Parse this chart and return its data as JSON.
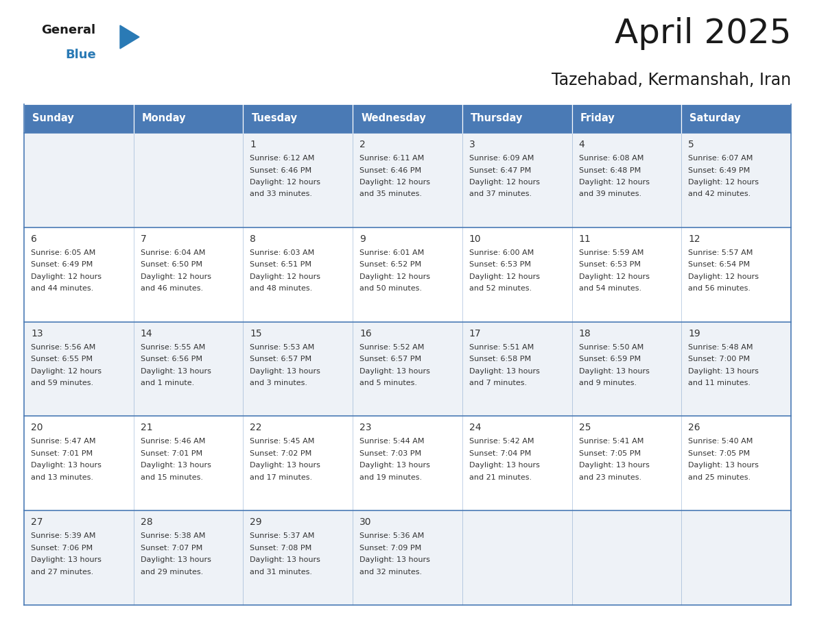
{
  "title": "April 2025",
  "subtitle": "Tazehabad, Kermanshah, Iran",
  "days_of_week": [
    "Sunday",
    "Monday",
    "Tuesday",
    "Wednesday",
    "Thursday",
    "Friday",
    "Saturday"
  ],
  "header_bg": "#4a7ab5",
  "header_text": "#ffffff",
  "row_bg_odd": "#eef2f7",
  "row_bg_even": "#ffffff",
  "border_color": "#4a7ab5",
  "text_color": "#333333",
  "logo_general_color": "#1a1a1a",
  "logo_blue_color": "#2a7ab5",
  "logo_triangle_color": "#2a7ab5",
  "title_color": "#1a1a1a",
  "subtitle_color": "#1a1a1a",
  "calendar_data": [
    [
      {
        "day": "",
        "sunrise": "",
        "sunset": "",
        "daylight": ""
      },
      {
        "day": "",
        "sunrise": "",
        "sunset": "",
        "daylight": ""
      },
      {
        "day": "1",
        "sunrise": "Sunrise: 6:12 AM",
        "sunset": "Sunset: 6:46 PM",
        "daylight": "Daylight: 12 hours\nand 33 minutes."
      },
      {
        "day": "2",
        "sunrise": "Sunrise: 6:11 AM",
        "sunset": "Sunset: 6:46 PM",
        "daylight": "Daylight: 12 hours\nand 35 minutes."
      },
      {
        "day": "3",
        "sunrise": "Sunrise: 6:09 AM",
        "sunset": "Sunset: 6:47 PM",
        "daylight": "Daylight: 12 hours\nand 37 minutes."
      },
      {
        "day": "4",
        "sunrise": "Sunrise: 6:08 AM",
        "sunset": "Sunset: 6:48 PM",
        "daylight": "Daylight: 12 hours\nand 39 minutes."
      },
      {
        "day": "5",
        "sunrise": "Sunrise: 6:07 AM",
        "sunset": "Sunset: 6:49 PM",
        "daylight": "Daylight: 12 hours\nand 42 minutes."
      }
    ],
    [
      {
        "day": "6",
        "sunrise": "Sunrise: 6:05 AM",
        "sunset": "Sunset: 6:49 PM",
        "daylight": "Daylight: 12 hours\nand 44 minutes."
      },
      {
        "day": "7",
        "sunrise": "Sunrise: 6:04 AM",
        "sunset": "Sunset: 6:50 PM",
        "daylight": "Daylight: 12 hours\nand 46 minutes."
      },
      {
        "day": "8",
        "sunrise": "Sunrise: 6:03 AM",
        "sunset": "Sunset: 6:51 PM",
        "daylight": "Daylight: 12 hours\nand 48 minutes."
      },
      {
        "day": "9",
        "sunrise": "Sunrise: 6:01 AM",
        "sunset": "Sunset: 6:52 PM",
        "daylight": "Daylight: 12 hours\nand 50 minutes."
      },
      {
        "day": "10",
        "sunrise": "Sunrise: 6:00 AM",
        "sunset": "Sunset: 6:53 PM",
        "daylight": "Daylight: 12 hours\nand 52 minutes."
      },
      {
        "day": "11",
        "sunrise": "Sunrise: 5:59 AM",
        "sunset": "Sunset: 6:53 PM",
        "daylight": "Daylight: 12 hours\nand 54 minutes."
      },
      {
        "day": "12",
        "sunrise": "Sunrise: 5:57 AM",
        "sunset": "Sunset: 6:54 PM",
        "daylight": "Daylight: 12 hours\nand 56 minutes."
      }
    ],
    [
      {
        "day": "13",
        "sunrise": "Sunrise: 5:56 AM",
        "sunset": "Sunset: 6:55 PM",
        "daylight": "Daylight: 12 hours\nand 59 minutes."
      },
      {
        "day": "14",
        "sunrise": "Sunrise: 5:55 AM",
        "sunset": "Sunset: 6:56 PM",
        "daylight": "Daylight: 13 hours\nand 1 minute."
      },
      {
        "day": "15",
        "sunrise": "Sunrise: 5:53 AM",
        "sunset": "Sunset: 6:57 PM",
        "daylight": "Daylight: 13 hours\nand 3 minutes."
      },
      {
        "day": "16",
        "sunrise": "Sunrise: 5:52 AM",
        "sunset": "Sunset: 6:57 PM",
        "daylight": "Daylight: 13 hours\nand 5 minutes."
      },
      {
        "day": "17",
        "sunrise": "Sunrise: 5:51 AM",
        "sunset": "Sunset: 6:58 PM",
        "daylight": "Daylight: 13 hours\nand 7 minutes."
      },
      {
        "day": "18",
        "sunrise": "Sunrise: 5:50 AM",
        "sunset": "Sunset: 6:59 PM",
        "daylight": "Daylight: 13 hours\nand 9 minutes."
      },
      {
        "day": "19",
        "sunrise": "Sunrise: 5:48 AM",
        "sunset": "Sunset: 7:00 PM",
        "daylight": "Daylight: 13 hours\nand 11 minutes."
      }
    ],
    [
      {
        "day": "20",
        "sunrise": "Sunrise: 5:47 AM",
        "sunset": "Sunset: 7:01 PM",
        "daylight": "Daylight: 13 hours\nand 13 minutes."
      },
      {
        "day": "21",
        "sunrise": "Sunrise: 5:46 AM",
        "sunset": "Sunset: 7:01 PM",
        "daylight": "Daylight: 13 hours\nand 15 minutes."
      },
      {
        "day": "22",
        "sunrise": "Sunrise: 5:45 AM",
        "sunset": "Sunset: 7:02 PM",
        "daylight": "Daylight: 13 hours\nand 17 minutes."
      },
      {
        "day": "23",
        "sunrise": "Sunrise: 5:44 AM",
        "sunset": "Sunset: 7:03 PM",
        "daylight": "Daylight: 13 hours\nand 19 minutes."
      },
      {
        "day": "24",
        "sunrise": "Sunrise: 5:42 AM",
        "sunset": "Sunset: 7:04 PM",
        "daylight": "Daylight: 13 hours\nand 21 minutes."
      },
      {
        "day": "25",
        "sunrise": "Sunrise: 5:41 AM",
        "sunset": "Sunset: 7:05 PM",
        "daylight": "Daylight: 13 hours\nand 23 minutes."
      },
      {
        "day": "26",
        "sunrise": "Sunrise: 5:40 AM",
        "sunset": "Sunset: 7:05 PM",
        "daylight": "Daylight: 13 hours\nand 25 minutes."
      }
    ],
    [
      {
        "day": "27",
        "sunrise": "Sunrise: 5:39 AM",
        "sunset": "Sunset: 7:06 PM",
        "daylight": "Daylight: 13 hours\nand 27 minutes."
      },
      {
        "day": "28",
        "sunrise": "Sunrise: 5:38 AM",
        "sunset": "Sunset: 7:07 PM",
        "daylight": "Daylight: 13 hours\nand 29 minutes."
      },
      {
        "day": "29",
        "sunrise": "Sunrise: 5:37 AM",
        "sunset": "Sunset: 7:08 PM",
        "daylight": "Daylight: 13 hours\nand 31 minutes."
      },
      {
        "day": "30",
        "sunrise": "Sunrise: 5:36 AM",
        "sunset": "Sunset: 7:09 PM",
        "daylight": "Daylight: 13 hours\nand 32 minutes."
      },
      {
        "day": "",
        "sunrise": "",
        "sunset": "",
        "daylight": ""
      },
      {
        "day": "",
        "sunrise": "",
        "sunset": "",
        "daylight": ""
      },
      {
        "day": "",
        "sunrise": "",
        "sunset": "",
        "daylight": ""
      }
    ]
  ]
}
